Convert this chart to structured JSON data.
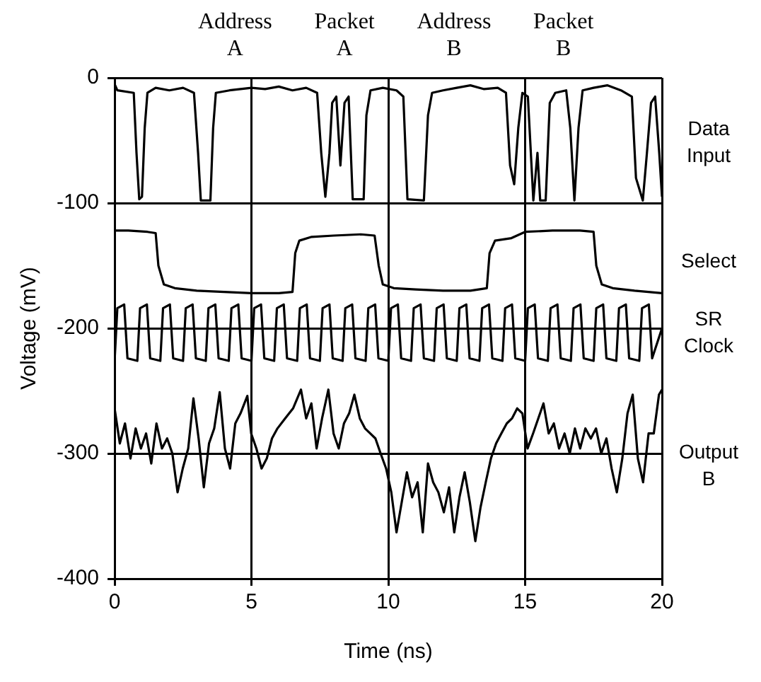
{
  "chart_data": {
    "type": "line",
    "xlabel": "Time (ns)",
    "ylabel": "Voltage (mV)",
    "xlim": [
      0,
      20
    ],
    "xticks": [
      0,
      5,
      10,
      15,
      20
    ],
    "ylim": [
      -400,
      0
    ],
    "yticks": [
      0,
      -100,
      -200,
      -300,
      -400
    ],
    "grid": true,
    "annotations": [
      "Address A",
      "Packet A",
      "Address B",
      "Packet B"
    ],
    "series": [
      {
        "name": "Data Input",
        "color": "#000000",
        "x": [
          0,
          0.1,
          0.7,
          0.8,
          0.9,
          1.0,
          1.1,
          1.2,
          1.5,
          2.0,
          2.5,
          2.9,
          3.05,
          3.15,
          3.5,
          3.6,
          3.7,
          4.2,
          5,
          5.5,
          6,
          6.5,
          7,
          7.4,
          7.55,
          7.7,
          7.85,
          7.95,
          8.1,
          8.25,
          8.4,
          8.55,
          8.7,
          9.1,
          9.2,
          9.35,
          9.8,
          10.3,
          10.55,
          10.7,
          11.3,
          11.45,
          11.6,
          12,
          12.5,
          13,
          13.5,
          14,
          14.3,
          14.45,
          14.6,
          14.75,
          14.9,
          15.1,
          15.3,
          15.45,
          15.55,
          15.75,
          15.9,
          16.1,
          16.5,
          16.65,
          16.8,
          16.95,
          17.1,
          17.5,
          18,
          18.5,
          18.9,
          19.05,
          19.3,
          19.45,
          19.6,
          19.75,
          19.9,
          20
        ],
        "values": [
          -5,
          -10,
          -12,
          -60,
          -97,
          -95,
          -40,
          -12,
          -8,
          -10,
          -8,
          -12,
          -60,
          -98,
          -98,
          -40,
          -12,
          -10,
          -8,
          -9,
          -7,
          -10,
          -8,
          -12,
          -60,
          -95,
          -60,
          -20,
          -15,
          -70,
          -20,
          -15,
          -97,
          -97,
          -30,
          -10,
          -8,
          -10,
          -15,
          -97,
          -98,
          -30,
          -12,
          -10,
          -8,
          -6,
          -9,
          -8,
          -12,
          -70,
          -85,
          -40,
          -12,
          -15,
          -98,
          -60,
          -98,
          -98,
          -20,
          -12,
          -10,
          -40,
          -98,
          -40,
          -10,
          -8,
          -6,
          -10,
          -15,
          -80,
          -98,
          -60,
          -20,
          -15,
          -60,
          -95
        ]
      },
      {
        "name": "Select",
        "color": "#000000",
        "x": [
          0,
          0.5,
          1.2,
          1.5,
          1.6,
          1.8,
          2.2,
          3,
          4,
          5,
          6,
          6.5,
          6.6,
          6.75,
          7.2,
          8,
          9,
          9.5,
          9.65,
          9.8,
          10.2,
          11,
          12,
          13,
          13.6,
          13.7,
          13.9,
          14.5,
          15,
          16,
          17,
          17.5,
          17.6,
          17.8,
          18.2,
          19,
          20
        ],
        "values": [
          -122,
          -122,
          -123,
          -124,
          -150,
          -165,
          -168,
          -170,
          -171,
          -172,
          -172,
          -171,
          -140,
          -130,
          -127,
          -126,
          -125,
          -126,
          -150,
          -165,
          -168,
          -169,
          -170,
          -170,
          -168,
          -140,
          -130,
          -128,
          -123,
          -122,
          -122,
          -123,
          -150,
          -165,
          -168,
          -170,
          -172
        ]
      },
      {
        "name": "SR Clock",
        "color": "#000000",
        "x": [
          0,
          0.1,
          0.35,
          0.47,
          0.83,
          0.93,
          1.18,
          1.3,
          1.67,
          1.77,
          2.02,
          2.14,
          2.5,
          2.6,
          2.85,
          2.97,
          3.33,
          3.43,
          3.68,
          3.8,
          4.17,
          4.27,
          4.52,
          4.64,
          5,
          5.1,
          5.35,
          5.47,
          5.83,
          5.93,
          6.18,
          6.3,
          6.67,
          6.77,
          7.02,
          7.14,
          7.5,
          7.6,
          7.85,
          7.97,
          8.33,
          8.43,
          8.68,
          8.8,
          9.17,
          9.27,
          9.52,
          9.64,
          10,
          10.1,
          10.35,
          10.47,
          10.83,
          10.93,
          11.18,
          11.3,
          11.67,
          11.77,
          12.02,
          12.14,
          12.5,
          12.6,
          12.85,
          12.97,
          13.33,
          13.43,
          13.68,
          13.8,
          14.17,
          14.27,
          14.52,
          14.64,
          15,
          15.1,
          15.35,
          15.47,
          15.83,
          15.93,
          16.18,
          16.3,
          16.67,
          16.77,
          17.02,
          17.14,
          17.5,
          17.6,
          17.85,
          17.97,
          18.33,
          18.43,
          18.68,
          18.8,
          19.17,
          19.27,
          19.52,
          19.64,
          20
        ],
        "values": [
          -226,
          -184,
          -181,
          -224,
          -226,
          -184,
          -181,
          -224,
          -226,
          -184,
          -181,
          -224,
          -226,
          -184,
          -181,
          -224,
          -226,
          -184,
          -181,
          -224,
          -226,
          -184,
          -181,
          -224,
          -226,
          -184,
          -181,
          -224,
          -226,
          -184,
          -181,
          -224,
          -226,
          -184,
          -181,
          -224,
          -226,
          -184,
          -181,
          -224,
          -226,
          -184,
          -181,
          -224,
          -226,
          -184,
          -181,
          -224,
          -226,
          -184,
          -181,
          -224,
          -226,
          -184,
          -181,
          -224,
          -226,
          -184,
          -181,
          -224,
          -226,
          -184,
          -181,
          -224,
          -226,
          -184,
          -181,
          -224,
          -226,
          -184,
          -181,
          -224,
          -226,
          -184,
          -181,
          -224,
          -226,
          -184,
          -181,
          -224,
          -226,
          -184,
          -181,
          -224,
          -226,
          -184,
          -181,
          -224,
          -226,
          -184,
          -181,
          -224,
          -226,
          -184,
          -181,
          -224,
          -200
        ]
      },
      {
        "name": "Output B",
        "color": "#000000",
        "x": [
          0,
          0.19,
          0.38,
          0.58,
          0.77,
          0.96,
          1.15,
          1.34,
          1.53,
          1.73,
          1.92,
          2.11,
          2.3,
          2.49,
          2.69,
          2.88,
          3.07,
          3.26,
          3.45,
          3.64,
          3.84,
          4.03,
          4.22,
          4.41,
          4.6,
          4.85,
          4.99,
          5.18,
          5.37,
          5.56,
          5.75,
          5.95,
          6.23,
          6.52,
          6.81,
          7,
          7.19,
          7.38,
          7.58,
          7.81,
          8,
          8.19,
          8.38,
          8.57,
          8.76,
          8.96,
          9.15,
          9.34,
          9.53,
          9.72,
          9.92,
          10.11,
          10.3,
          10.49,
          10.68,
          10.87,
          11.07,
          11.26,
          11.45,
          11.64,
          11.83,
          12.03,
          12.22,
          12.41,
          12.6,
          12.79,
          12.98,
          13.18,
          13.37,
          13.56,
          13.75,
          13.94,
          14.13,
          14.33,
          14.52,
          14.71,
          14.9,
          15.09,
          15.29,
          15.48,
          15.67,
          15.86,
          16.05,
          16.24,
          16.44,
          16.63,
          16.82,
          17.01,
          17.2,
          17.4,
          17.59,
          17.78,
          17.97,
          18.16,
          18.35,
          18.55,
          18.74,
          18.93,
          19.12,
          19.31,
          19.51,
          19.7,
          19.89,
          20
        ],
        "values": [
          -264,
          -292,
          -276,
          -304,
          -280,
          -296,
          -284,
          -308,
          -276,
          -296,
          -288,
          -300,
          -331,
          -312,
          -296,
          -256,
          -288,
          -327,
          -292,
          -280,
          -251,
          -296,
          -312,
          -276,
          -268,
          -254,
          -284,
          -296,
          -312,
          -304,
          -288,
          -280,
          -272,
          -264,
          -249,
          -272,
          -260,
          -296,
          -272,
          -249,
          -284,
          -296,
          -276,
          -268,
          -253,
          -272,
          -280,
          -284,
          -288,
          -300,
          -312,
          -331,
          -363,
          -339,
          -315,
          -335,
          -323,
          -363,
          -308,
          -323,
          -331,
          -347,
          -327,
          -363,
          -335,
          -315,
          -339,
          -370,
          -343,
          -323,
          -304,
          -292,
          -284,
          -276,
          -272,
          -264,
          -268,
          -296,
          -284,
          -272,
          -260,
          -284,
          -276,
          -296,
          -284,
          -300,
          -280,
          -296,
          -280,
          -288,
          -280,
          -300,
          -288,
          -312,
          -331,
          -304,
          -268,
          -253,
          -304,
          -323,
          -284,
          -284,
          -253,
          -249
        ]
      }
    ]
  }
}
